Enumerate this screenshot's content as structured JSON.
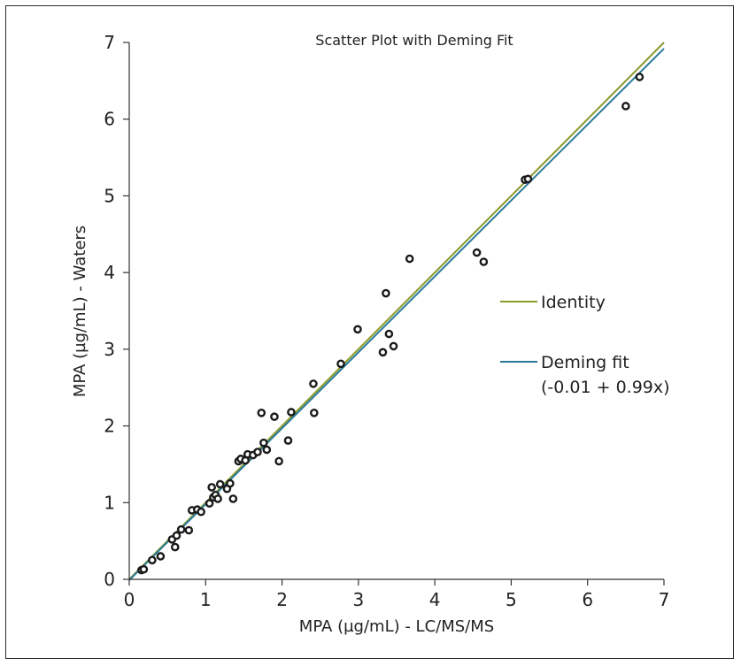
{
  "chart_data": {
    "type": "scatter",
    "title": "Scatter Plot with Deming Fit",
    "xlabel": "MPA (µg/mL) - LC/MS/MS",
    "ylabel": "MPA (µg/mL) - Waters",
    "xlim": [
      0,
      7
    ],
    "ylim": [
      0,
      7
    ],
    "xticks": [
      "0",
      "1",
      "2",
      "3",
      "4",
      "5",
      "6",
      "7"
    ],
    "yticks": [
      "0",
      "1",
      "2",
      "3",
      "4",
      "5",
      "6",
      "7"
    ],
    "grid": false,
    "legend_position": "right",
    "points": [
      [
        0.16,
        0.12
      ],
      [
        0.19,
        0.13
      ],
      [
        0.3,
        0.25
      ],
      [
        0.41,
        0.3
      ],
      [
        0.56,
        0.52
      ],
      [
        0.6,
        0.42
      ],
      [
        0.62,
        0.57
      ],
      [
        0.68,
        0.65
      ],
      [
        0.78,
        0.64
      ],
      [
        0.82,
        0.9
      ],
      [
        0.89,
        0.91
      ],
      [
        0.94,
        0.88
      ],
      [
        1.05,
        0.99
      ],
      [
        1.08,
        1.2
      ],
      [
        1.1,
        1.07
      ],
      [
        1.13,
        1.1
      ],
      [
        1.16,
        1.05
      ],
      [
        1.19,
        1.24
      ],
      [
        1.28,
        1.18
      ],
      [
        1.32,
        1.25
      ],
      [
        1.36,
        1.05
      ],
      [
        1.43,
        1.54
      ],
      [
        1.46,
        1.57
      ],
      [
        1.52,
        1.55
      ],
      [
        1.55,
        1.63
      ],
      [
        1.62,
        1.62
      ],
      [
        1.68,
        1.66
      ],
      [
        1.73,
        2.17
      ],
      [
        1.76,
        1.78
      ],
      [
        1.8,
        1.69
      ],
      [
        1.9,
        2.12
      ],
      [
        1.96,
        1.54
      ],
      [
        2.08,
        1.81
      ],
      [
        2.12,
        2.18
      ],
      [
        2.41,
        2.55
      ],
      [
        2.42,
        2.17
      ],
      [
        2.77,
        2.81
      ],
      [
        2.99,
        3.26
      ],
      [
        3.32,
        2.96
      ],
      [
        3.36,
        3.73
      ],
      [
        3.4,
        3.2
      ],
      [
        3.46,
        3.04
      ],
      [
        3.67,
        4.18
      ],
      [
        4.55,
        4.26
      ],
      [
        4.64,
        4.14
      ],
      [
        5.18,
        5.21
      ],
      [
        5.22,
        5.22
      ],
      [
        6.5,
        6.17
      ],
      [
        6.68,
        6.55
      ]
    ],
    "lines": [
      {
        "name": "Identity",
        "intercept": 0,
        "slope": 1,
        "color": "#8a9a2c"
      },
      {
        "name": "Deming fit",
        "name_line2": "(-0.01 + 0.99x)",
        "intercept": -0.01,
        "slope": 0.99,
        "color": "#2a7a99"
      }
    ]
  }
}
